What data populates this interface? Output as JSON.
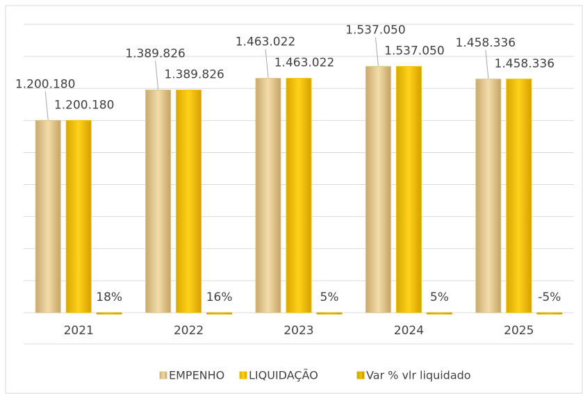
{
  "chart_data": {
    "type": "bar",
    "categories": [
      "2021",
      "2022",
      "2023",
      "2024",
      "2025"
    ],
    "series": [
      {
        "name": "EMPENHO",
        "color": "#dcc08a",
        "values": [
          1200180,
          1389826,
          1463022,
          1537050,
          1458336
        ],
        "value_labels": [
          "1.200.180",
          "1.389.826",
          "1.463.022",
          "1.537.050",
          "1.458.336"
        ]
      },
      {
        "name": "LIQUIDAÇÃO",
        "color": "#f2c200",
        "values": [
          1200180,
          1389826,
          1463022,
          1537050,
          1458336
        ],
        "value_labels": [
          "1.200.180",
          "1.389.826",
          "1.463.022",
          "1.537.050",
          "1.458.336"
        ]
      },
      {
        "name": "Var % vlr liquidado",
        "color": "#d9ad00",
        "values": [
          18,
          16,
          5,
          5,
          -5
        ],
        "value_labels": [
          "18%",
          "16%",
          "5%",
          "5%",
          "-5%"
        ]
      }
    ],
    "ylim": [
      0,
      1800000
    ],
    "yticks": [
      0,
      200000,
      400000,
      600000,
      800000,
      1000000,
      1200000,
      1400000,
      1600000,
      1800000
    ],
    "grid": true,
    "legend": "bottom"
  }
}
